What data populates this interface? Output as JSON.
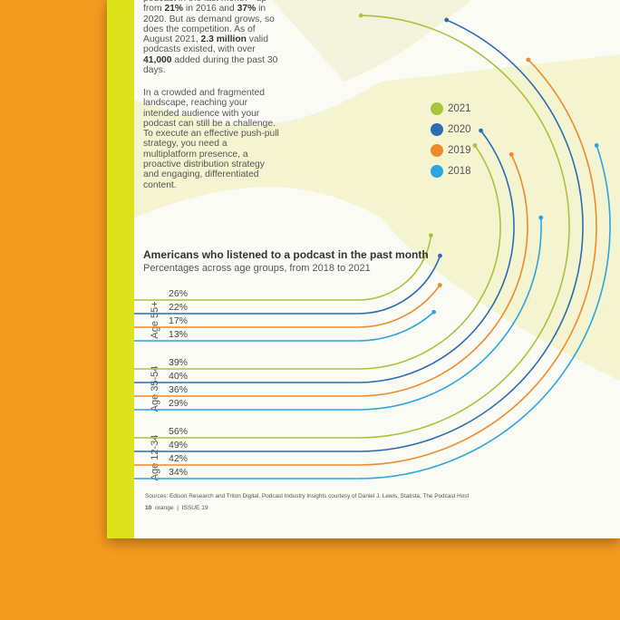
{
  "body": [
    [
      "podcast in the last month—up from ",
      "21%",
      " in 2016 and ",
      "37%",
      " in 2020. But as demand grows, so does the competition. As of August 2021, ",
      "2.3 million",
      " valid podcasts existed, with over ",
      "41,000",
      " added during the past 30 days."
    ],
    [
      "In a crowded and fragmented landscape, reaching your intended audience with your podcast can still be a challenge. To execute an effective push-pull strategy, you need a multiplatform presence, a proactive distribution strategy and engaging, differentiated content."
    ]
  ],
  "chart_data": {
    "type": "arc",
    "title": "Americans who listened to a podcast in the past month",
    "subtitle": "Percentages across age groups, from 2018 to 2021",
    "categories": [
      "Age 55+",
      "Age 35-54",
      "Age 12-34"
    ],
    "series": [
      {
        "name": "2021",
        "color": "#a9c43b",
        "values": [
          26,
          39,
          56
        ],
        "value_labels": [
          "26%",
          "39%",
          "56%"
        ]
      },
      {
        "name": "2020",
        "color": "#2b6cb3",
        "values": [
          22,
          40,
          49
        ],
        "value_labels": [
          "22%",
          "40%",
          "49%"
        ]
      },
      {
        "name": "2019",
        "color": "#ef8a2a",
        "values": [
          17,
          36,
          42
        ],
        "value_labels": [
          "17%",
          "36%",
          "42%"
        ]
      },
      {
        "name": "2018",
        "color": "#2ba6df",
        "values": [
          13,
          29,
          34
        ],
        "value_labels": [
          "13%",
          "29%",
          "34%"
        ]
      }
    ],
    "legend": "upper right",
    "source": "Sources: Edison Research and Triton Digital, Podcast Industry Insights courtesy of Daniel J. Lewis, Statista, The Podcast Host"
  },
  "footer": {
    "page": "10",
    "magazine": "orange",
    "issue": "ISSUE 19"
  }
}
